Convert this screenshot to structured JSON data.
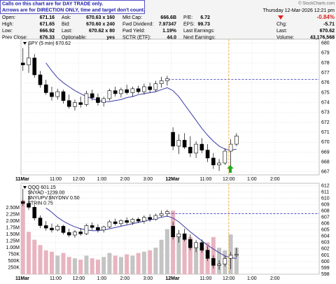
{
  "header": {
    "notes": [
      "Calls on this chart are for DAY TRADE only.",
      "Arrows are for DIRECTION ONLY, time and target don't count."
    ],
    "date": "Thursday 12-Mar-2026 12:21 pm",
    "copyright": "© StockCharts.com",
    "stats": [
      [
        [
          "Open:",
          "671.16"
        ],
        [
          "Ask:",
          "670.63 x 160"
        ],
        [
          "Mkt Cap:",
          "666.6B"
        ],
        [
          "P/E:",
          "6.72"
        ]
      ],
      [
        [
          "High:",
          "671.65"
        ],
        [
          "Bid:",
          "670.60 x 240"
        ],
        [
          "Fwd Dividend:",
          "7.97347"
        ],
        [
          "EPS:",
          "99.73"
        ]
      ],
      [
        [
          "Low:",
          "666.92"
        ],
        [
          "Last:",
          "670.62 x 80"
        ],
        [
          "Fwd Yield:",
          "1.19%"
        ],
        [
          "Last Earnings:"
        ]
      ],
      [
        [
          "Prev Close:",
          "676.33"
        ],
        [
          "Optionable:",
          "yes"
        ],
        [
          "SCTR (ETF):",
          "44.0"
        ],
        [
          "Next Earnings:"
        ]
      ]
    ],
    "change_pct": "-0.84%",
    "right_stats": [
      [
        "Chg:",
        "-5.71"
      ],
      [
        "Last:",
        "670.62"
      ],
      [
        "Volume:",
        "43,176,568"
      ]
    ]
  },
  "chart_data": [
    {
      "type": "candlestick",
      "legend": [
        "SPY (5 min) 670.62"
      ],
      "x": [
        1,
        4,
        7,
        10,
        13,
        16,
        19,
        22,
        25,
        28,
        31,
        34,
        37,
        40,
        43,
        46,
        49,
        52,
        55,
        58,
        61,
        64,
        67,
        70,
        73,
        76,
        79,
        82,
        85,
        88,
        91,
        94,
        97,
        100,
        103,
        106,
        109,
        112
      ],
      "open": [
        678.0,
        677.8,
        678.5,
        676.8,
        675.8,
        675.0,
        674.6,
        675.1,
        674.2,
        673.6,
        674.0,
        673.8,
        674.9,
        674.5,
        674.0,
        674.4,
        675.2,
        674.9,
        675.3,
        675.0,
        675.4,
        675.1,
        675.6,
        675.3,
        675.9,
        676.2,
        671.0,
        669.6,
        670.2,
        669.5,
        668.9,
        669.8,
        669.2,
        668.4,
        667.7,
        667.9,
        669.1,
        669.8
      ],
      "high": [
        679.5,
        680.0,
        678.9,
        677.2,
        676.3,
        675.6,
        675.4,
        675.3,
        674.8,
        674.3,
        674.6,
        675.2,
        675.3,
        674.9,
        674.6,
        675.4,
        675.6,
        675.5,
        675.8,
        675.6,
        675.7,
        675.9,
        676.0,
        676.2,
        676.6,
        676.7,
        671.5,
        670.8,
        670.9,
        670.6,
        670.1,
        670.4,
        669.8,
        668.9,
        668.3,
        669.4,
        670.3,
        670.9
      ],
      "low": [
        677.2,
        677.0,
        676.5,
        675.5,
        674.8,
        674.2,
        674.3,
        673.9,
        673.4,
        673.2,
        673.5,
        673.6,
        674.2,
        673.7,
        673.6,
        674.2,
        674.6,
        674.5,
        674.8,
        674.6,
        674.9,
        674.8,
        675.0,
        675.1,
        675.5,
        675.7,
        669.2,
        668.8,
        669.3,
        668.5,
        668.4,
        668.9,
        668.0,
        667.3,
        667.1,
        667.7,
        667.6,
        669.6
      ],
      "close": [
        677.8,
        678.5,
        676.8,
        675.8,
        675.0,
        674.6,
        675.1,
        674.2,
        673.6,
        674.0,
        673.8,
        674.9,
        674.5,
        674.0,
        674.4,
        675.2,
        674.9,
        675.3,
        675.0,
        675.4,
        675.1,
        675.6,
        675.3,
        675.9,
        676.2,
        676.4,
        669.6,
        670.2,
        669.5,
        668.9,
        669.8,
        669.2,
        668.4,
        667.7,
        667.9,
        669.1,
        669.8,
        670.62
      ],
      "ma": {
        "color": "#3a3aa8",
        "values": [
          null,
          null,
          null,
          null,
          678.0,
          677.2,
          676.5,
          676.0,
          675.6,
          675.2,
          674.9,
          674.6,
          674.4,
          674.2,
          674.1,
          674.1,
          674.2,
          674.3,
          674.5,
          674.6,
          674.8,
          674.9,
          675.0,
          675.1,
          675.3,
          675.5,
          675.2,
          674.6,
          673.8,
          673.0,
          672.2,
          671.4,
          670.7,
          670.1,
          669.6,
          669.3,
          669.2,
          669.3
        ]
      },
      "ref_line": 676.33,
      "ref_color": "#2b2bb8",
      "xlim": [
        0,
        155
      ],
      "xticks": [
        {
          "value": 0,
          "label": "11Mar"
        },
        {
          "value": 18,
          "label": "11:00"
        },
        {
          "value": 30,
          "label": "12:00"
        },
        {
          "value": 42,
          "label": "1:00"
        },
        {
          "value": 54,
          "label": "2:00"
        },
        {
          "value": 66,
          "label": "3:00"
        },
        {
          "value": 78,
          "label": "12Mar"
        },
        {
          "value": 96,
          "label": "11:00"
        },
        {
          "value": 108,
          "label": "12:00"
        },
        {
          "value": 120,
          "label": "1:00"
        },
        {
          "value": 132,
          "label": "2:00"
        }
      ],
      "ylim": [
        666.7,
        680.4
      ],
      "yticks": [
        667,
        668,
        669,
        670,
        671,
        672,
        673,
        674,
        675,
        676,
        677,
        678,
        679,
        680
      ],
      "grid": true
    },
    {
      "type": "candlestick",
      "legend": [
        "QQQ 601.15",
        "$NYAD -1239.00",
        "$NYUPV:$NYDNV 0.50",
        "$TRIN 0.75"
      ],
      "x": [
        1,
        4,
        7,
        10,
        13,
        16,
        19,
        22,
        25,
        28,
        31,
        34,
        37,
        40,
        43,
        46,
        49,
        52,
        55,
        58,
        61,
        64,
        67,
        70,
        73,
        76,
        79,
        82,
        85,
        88,
        91,
        94,
        97,
        100,
        103,
        106,
        109,
        112
      ],
      "open": [
        609.5,
        609.2,
        608.6,
        606.9,
        605.7,
        605.3,
        605.0,
        605.6,
        604.6,
        604.2,
        604.7,
        604.4,
        605.7,
        605.4,
        605.0,
        605.5,
        606.3,
        606.0,
        606.5,
        606.2,
        606.7,
        606.4,
        607.0,
        606.7,
        607.3,
        607.6,
        605.6,
        603.9,
        604.4,
        603.5,
        602.2,
        603.0,
        601.8,
        600.5,
        599.4,
        599.6,
        600.5,
        601.0
      ],
      "high": [
        611.5,
        610.4,
        609.0,
        607.3,
        606.4,
        606.0,
        605.9,
        605.8,
        605.2,
        605.0,
        605.3,
        606.0,
        606.2,
        605.9,
        605.7,
        606.6,
        606.8,
        606.7,
        607.0,
        606.9,
        607.0,
        607.3,
        607.5,
        607.6,
        608.1,
        608.2,
        606.3,
        605.0,
        605.2,
        604.3,
        603.4,
        603.5,
        602.4,
        601.0,
        600.2,
        600.9,
        601.5,
        602.2
      ],
      "low": [
        608.8,
        608.2,
        606.5,
        605.3,
        604.9,
        604.6,
        604.8,
        604.3,
        603.9,
        603.8,
        604.1,
        604.2,
        605.0,
        604.6,
        604.6,
        605.3,
        605.7,
        605.6,
        605.9,
        605.8,
        606.1,
        606.0,
        606.3,
        606.5,
        607.0,
        607.1,
        603.5,
        603.0,
        603.2,
        601.8,
        601.5,
        601.4,
        600.1,
        598.9,
        598.7,
        599.2,
        598.8,
        600.7
      ],
      "close": [
        609.2,
        608.6,
        606.9,
        605.7,
        605.3,
        605.0,
        605.6,
        604.6,
        604.2,
        604.7,
        604.4,
        605.7,
        605.4,
        605.0,
        605.5,
        606.3,
        606.0,
        606.5,
        606.2,
        606.7,
        606.4,
        607.0,
        606.7,
        607.3,
        607.6,
        607.9,
        603.9,
        604.4,
        603.5,
        602.2,
        603.0,
        601.8,
        600.5,
        599.4,
        599.6,
        600.5,
        601.0,
        601.15
      ],
      "ma": {
        "color": "#3a3aa8",
        "values": [
          null,
          null,
          null,
          null,
          608.5,
          607.8,
          607.0,
          606.4,
          605.9,
          605.5,
          605.2,
          605.0,
          604.9,
          604.9,
          605.0,
          605.2,
          605.4,
          605.6,
          605.8,
          606.0,
          606.2,
          606.4,
          606.6,
          606.8,
          607.0,
          607.2,
          606.9,
          606.3,
          605.5,
          604.7,
          604.0,
          603.3,
          602.6,
          602.0,
          601.4,
          600.9,
          600.6,
          600.5
        ]
      },
      "ref_line": 607.6,
      "ref_color": "#2b2bb8",
      "volume": {
        "values": [
          2800000,
          1600000,
          1300000,
          1100000,
          900000,
          850000,
          700000,
          800000,
          650000,
          600000,
          550000,
          700000,
          600000,
          550000,
          650000,
          800000,
          700000,
          650000,
          750000,
          700000,
          800000,
          850000,
          900000,
          1000000,
          1300000,
          1700000,
          2400000,
          1500000,
          1300000,
          1400000,
          1100000,
          1000000,
          1200000,
          1400000,
          1000000,
          900000,
          1500000,
          1000000
        ],
        "up_color": "#c4c4c4",
        "down_color": "#e8b4bf",
        "ylim": [
          0,
          3430000
        ],
        "yticks": [
          {
            "value": 250000,
            "label": "250K"
          },
          {
            "value": 500000,
            "label": "500K"
          },
          {
            "value": 750000,
            "label": "750K"
          },
          {
            "value": 1000000,
            "label": "1.00M"
          },
          {
            "value": 1250000,
            "label": "1.25M"
          },
          {
            "value": 1500000,
            "label": "1.50M"
          },
          {
            "value": 1750000,
            "label": "1.75M"
          },
          {
            "value": 2000000,
            "label": "2.00M"
          },
          {
            "value": 2250000,
            "label": "2.25M"
          },
          {
            "value": 2500000,
            "label": "2.50M"
          }
        ]
      },
      "xlim": [
        0,
        155
      ],
      "xticks": [
        {
          "value": 0,
          "label": "11Mar"
        },
        {
          "value": 18,
          "label": "11:00"
        },
        {
          "value": 30,
          "label": "12:00"
        },
        {
          "value": 42,
          "label": "1:00"
        },
        {
          "value": 54,
          "label": "2:00"
        },
        {
          "value": 66,
          "label": "3:00"
        },
        {
          "value": 78,
          "label": "12Mar"
        },
        {
          "value": 96,
          "label": "11:00"
        },
        {
          "value": 108,
          "label": "12:00"
        },
        {
          "value": 120,
          "label": "1:00"
        },
        {
          "value": 132,
          "label": "2:00"
        }
      ],
      "ylim": [
        598,
        612.4
      ],
      "yticks": [
        598,
        599,
        600,
        601,
        602,
        603,
        604,
        605,
        606,
        607,
        608,
        609,
        610,
        611,
        612
      ],
      "grid": true
    }
  ]
}
